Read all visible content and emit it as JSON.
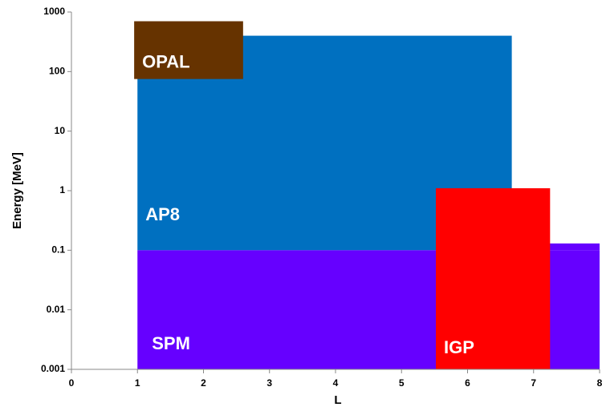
{
  "chart_data": {
    "type": "range",
    "x_label": "L",
    "y_label": "Energy  [MeV]",
    "xlim": [
      0,
      8
    ],
    "xticks": [
      0,
      1,
      2,
      3,
      4,
      5,
      6,
      7,
      8
    ],
    "ylim": [
      0.001,
      1000
    ],
    "yticks": [
      0.001,
      0.01,
      0.1,
      1,
      10,
      100,
      1000
    ],
    "y_scale": "log",
    "series": [
      {
        "name": "AP8",
        "color": "#0070c0",
        "boxes": [
          [
            1,
            6.67,
            0.1,
            400
          ]
        ]
      },
      {
        "name": "OPAL",
        "color": "#663300",
        "boxes": [
          [
            0.95,
            2.6,
            75,
            700
          ]
        ]
      },
      {
        "name": "SPM",
        "color": "#6600ff",
        "boxes": [
          [
            1,
            8,
            0.001,
            0.1
          ],
          [
            7.2,
            8,
            0.1,
            0.13
          ]
        ]
      },
      {
        "name": "IGP",
        "color": "#ff0000",
        "boxes": [
          [
            5.52,
            7.25,
            0.001,
            1.1
          ]
        ]
      }
    ]
  }
}
